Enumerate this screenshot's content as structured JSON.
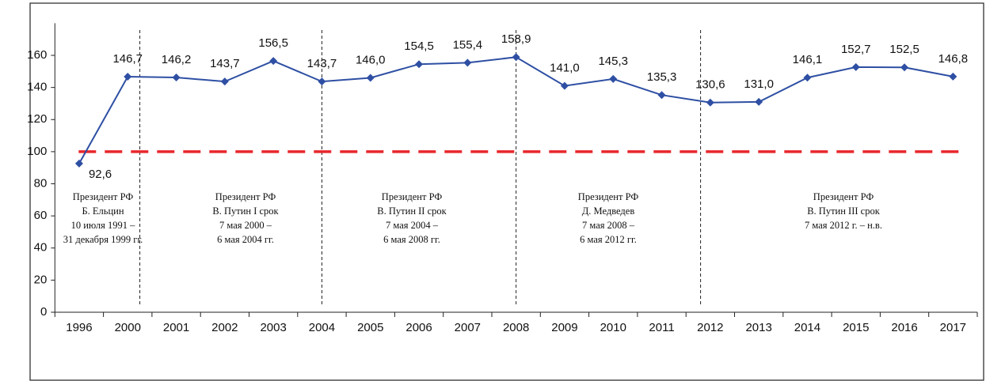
{
  "chart_data": {
    "type": "line",
    "categories": [
      "1996",
      "2000",
      "2001",
      "2002",
      "2003",
      "2004",
      "2005",
      "2006",
      "2007",
      "2008",
      "2009",
      "2010",
      "2011",
      "2012",
      "2013",
      "2014",
      "2015",
      "2016",
      "2017"
    ],
    "series": [
      {
        "color": "#2e4fa3",
        "values": [
          92.6,
          146.7,
          146.2,
          143.7,
          156.5,
          143.7,
          146.0,
          154.5,
          155.4,
          158.9,
          141.0,
          145.3,
          135.3,
          130.6,
          131.0,
          146.1,
          152.7,
          152.5,
          146.8
        ],
        "value_labels": [
          "92,6",
          "146,7",
          "146,2",
          "143,7",
          "156,5",
          "143,7",
          "146,0",
          "154,5",
          "155,4",
          "158,9",
          "141,0",
          "145,3",
          "135,3",
          "130,6",
          "131,0",
          "146,1",
          "152,7",
          "152,5",
          "146,8"
        ]
      }
    ],
    "ylim": [
      0,
      180
    ],
    "yticks": [
      0,
      20,
      40,
      60,
      80,
      100,
      120,
      140,
      160
    ],
    "reference_line": {
      "value": 100,
      "color": "#e8262b"
    },
    "annotations": [
      [
        "Президент РФ",
        "Б. Ельцин",
        "10 июля 1991 –",
        "31 декабря 1999 гг."
      ],
      [
        "Президент РФ",
        "В. Путин I срок",
        "7 мая 2000 –",
        "6 мая 2004 гг."
      ],
      [
        "Президент РФ",
        "В. Путин II срок",
        "7 мая 2004 –",
        "6 мая 2008 гг."
      ],
      [
        "Президент РФ",
        "Д. Медведев",
        "7 мая 2008 –",
        "6 мая 2012 гг."
      ],
      [
        "Президент РФ",
        "В. Путин III срок",
        "7 мая 2012 г. – н.в."
      ]
    ]
  }
}
